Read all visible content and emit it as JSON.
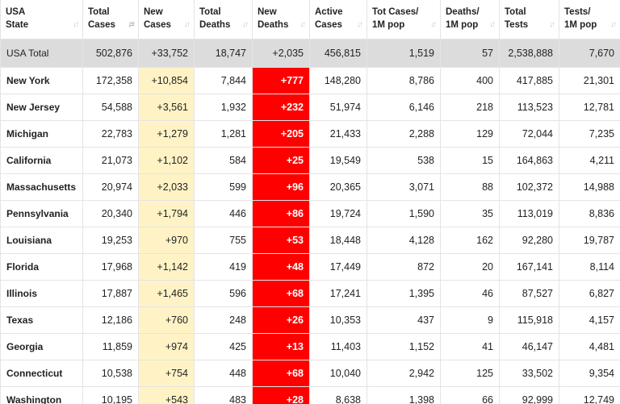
{
  "headers": [
    {
      "l1": "USA",
      "l2": "State"
    },
    {
      "l1": "Total",
      "l2": "Cases"
    },
    {
      "l1": "New",
      "l2": "Cases"
    },
    {
      "l1": "Total",
      "l2": "Deaths"
    },
    {
      "l1": "New",
      "l2": "Deaths"
    },
    {
      "l1": "Active",
      "l2": "Cases"
    },
    {
      "l1": "Tot Cases/",
      "l2": "1M pop"
    },
    {
      "l1": "Deaths/",
      "l2": "1M pop"
    },
    {
      "l1": "Total",
      "l2": "Tests"
    },
    {
      "l1": "Tests/",
      "l2": "1M pop"
    }
  ],
  "sort": {
    "icon": "sort-arrows-icon",
    "active_column": 1
  },
  "colors": {
    "new_cases_bg": "#fff3c6",
    "new_deaths_bg": "#ff0000",
    "total_row_bg": "#dcdcdc"
  },
  "total_row": [
    "USA Total",
    "502,876",
    "+33,752",
    "18,747",
    "+2,035",
    "456,815",
    "1,519",
    "57",
    "2,538,888",
    "7,670"
  ],
  "rows": [
    [
      "New York",
      "172,358",
      "+10,854",
      "7,844",
      "+777",
      "148,280",
      "8,786",
      "400",
      "417,885",
      "21,301"
    ],
    [
      "New Jersey",
      "54,588",
      "+3,561",
      "1,932",
      "+232",
      "51,974",
      "6,146",
      "218",
      "113,523",
      "12,781"
    ],
    [
      "Michigan",
      "22,783",
      "+1,279",
      "1,281",
      "+205",
      "21,433",
      "2,288",
      "129",
      "72,044",
      "7,235"
    ],
    [
      "California",
      "21,073",
      "+1,102",
      "584",
      "+25",
      "19,549",
      "538",
      "15",
      "164,863",
      "4,211"
    ],
    [
      "Massachusetts",
      "20,974",
      "+2,033",
      "599",
      "+96",
      "20,365",
      "3,071",
      "88",
      "102,372",
      "14,988"
    ],
    [
      "Pennsylvania",
      "20,340",
      "+1,794",
      "446",
      "+86",
      "19,724",
      "1,590",
      "35",
      "113,019",
      "8,836"
    ],
    [
      "Louisiana",
      "19,253",
      "+970",
      "755",
      "+53",
      "18,448",
      "4,128",
      "162",
      "92,280",
      "19,787"
    ],
    [
      "Florida",
      "17,968",
      "+1,142",
      "419",
      "+48",
      "17,449",
      "872",
      "20",
      "167,141",
      "8,114"
    ],
    [
      "Illinois",
      "17,887",
      "+1,465",
      "596",
      "+68",
      "17,241",
      "1,395",
      "46",
      "87,527",
      "6,827"
    ],
    [
      "Texas",
      "12,186",
      "+760",
      "248",
      "+26",
      "10,353",
      "437",
      "9",
      "115,918",
      "4,157"
    ],
    [
      "Georgia",
      "11,859",
      "+974",
      "425",
      "+13",
      "11,403",
      "1,152",
      "41",
      "46,147",
      "4,481"
    ],
    [
      "Connecticut",
      "10,538",
      "+754",
      "448",
      "+68",
      "10,040",
      "2,942",
      "125",
      "33,502",
      "9,354"
    ],
    [
      "Washington",
      "10,195",
      "+543",
      "483",
      "+28",
      "8,638",
      "1,398",
      "66",
      "92,999",
      "12,749"
    ]
  ]
}
